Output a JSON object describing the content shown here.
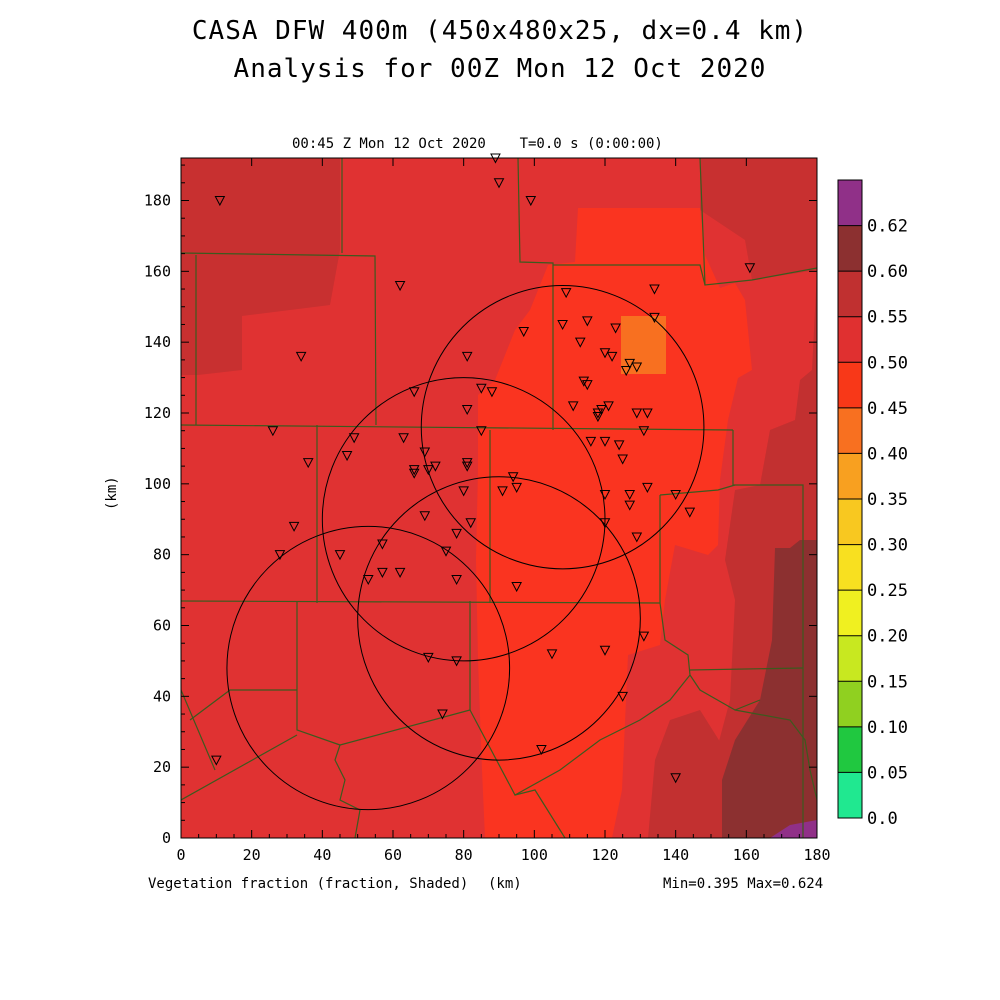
{
  "title_line1": "CASA DFW 400m (450x480x25, dx=0.4 km)",
  "title_line2": "Analysis for 00Z Mon 12 Oct 2020",
  "plot_header": "00:45 Z Mon 12 Oct 2020    T=0.0 s (0:00:00)",
  "footer_left": "Vegetation fraction (fraction, Shaded)",
  "footer_unit": "(km)",
  "footer_right": "Min=0.395 Max=0.624",
  "y_unit": "(km)",
  "chart_data": {
    "type": "heatmap",
    "x_ticks": [
      0,
      20,
      40,
      60,
      80,
      100,
      120,
      140,
      160,
      180
    ],
    "y_ticks": [
      0,
      20,
      40,
      60,
      80,
      100,
      120,
      140,
      160,
      180
    ],
    "xlim": [
      0,
      180
    ],
    "ylim": [
      0,
      192
    ],
    "colorbar": {
      "labels": [
        "0.0",
        "0.05",
        "0.10",
        "0.15",
        "0.20",
        "0.25",
        "0.30",
        "0.35",
        "0.40",
        "0.45",
        "0.50",
        "0.55",
        "0.60",
        "0.62"
      ],
      "colors": [
        "#20e890",
        "#20c840",
        "#90d020",
        "#c8e820",
        "#f0f020",
        "#f8e020",
        "#f8c820",
        "#f8a020",
        "#f87020",
        "#f83818",
        "#e03030",
        "#c03030",
        "#8c3030",
        "#903088"
      ]
    },
    "min": 0.395,
    "max": 0.624,
    "radar_rings_km": [
      {
        "cx": 108,
        "cy": 116,
        "r": 40
      },
      {
        "cx": 80,
        "cy": 90,
        "r": 40
      },
      {
        "cx": 90,
        "cy": 62,
        "r": 40
      },
      {
        "cx": 53,
        "cy": 48,
        "r": 40
      }
    ],
    "stations_km": [
      [
        89,
        192
      ],
      [
        90,
        185
      ],
      [
        11,
        180
      ],
      [
        99,
        180
      ],
      [
        161,
        161
      ],
      [
        62,
        156
      ],
      [
        134,
        155
      ],
      [
        109,
        154
      ],
      [
        134,
        147
      ],
      [
        115,
        146
      ],
      [
        108,
        145
      ],
      [
        97,
        143
      ],
      [
        123,
        144
      ],
      [
        113,
        140
      ],
      [
        120,
        137
      ],
      [
        122,
        136
      ],
      [
        34,
        136
      ],
      [
        81,
        136
      ],
      [
        127,
        134
      ],
      [
        129,
        133
      ],
      [
        126,
        132
      ],
      [
        114,
        129
      ],
      [
        115,
        128
      ],
      [
        85,
        127
      ],
      [
        88,
        126
      ],
      [
        66,
        126
      ],
      [
        111,
        122
      ],
      [
        121,
        122
      ],
      [
        119,
        121
      ],
      [
        118,
        120
      ],
      [
        81,
        121
      ],
      [
        129,
        120
      ],
      [
        132,
        120
      ],
      [
        118,
        119
      ],
      [
        131,
        115
      ],
      [
        26,
        115
      ],
      [
        85,
        115
      ],
      [
        63,
        113
      ],
      [
        49,
        113
      ],
      [
        120,
        112
      ],
      [
        116,
        112
      ],
      [
        124,
        111
      ],
      [
        69,
        109
      ],
      [
        47,
        108
      ],
      [
        125,
        107
      ],
      [
        36,
        106
      ],
      [
        81,
        106
      ],
      [
        81,
        105
      ],
      [
        72,
        105
      ],
      [
        66,
        104
      ],
      [
        70,
        104
      ],
      [
        66,
        103
      ],
      [
        94,
        102
      ],
      [
        132,
        99
      ],
      [
        95,
        99
      ],
      [
        91,
        98
      ],
      [
        127,
        97
      ],
      [
        80,
        98
      ],
      [
        140,
        97
      ],
      [
        120,
        97
      ],
      [
        127,
        94
      ],
      [
        69,
        91
      ],
      [
        144,
        92
      ],
      [
        32,
        88
      ],
      [
        120,
        89
      ],
      [
        82,
        89
      ],
      [
        78,
        86
      ],
      [
        129,
        85
      ],
      [
        57,
        83
      ],
      [
        28,
        80
      ],
      [
        45,
        80
      ],
      [
        75,
        81
      ],
      [
        57,
        75
      ],
      [
        62,
        75
      ],
      [
        53,
        73
      ],
      [
        78,
        73
      ],
      [
        95,
        71
      ],
      [
        131,
        57
      ],
      [
        120,
        53
      ],
      [
        105,
        52
      ],
      [
        70,
        51
      ],
      [
        78,
        50
      ],
      [
        125,
        40
      ],
      [
        74,
        35
      ],
      [
        102,
        25
      ],
      [
        10,
        22
      ],
      [
        140,
        17
      ]
    ]
  }
}
